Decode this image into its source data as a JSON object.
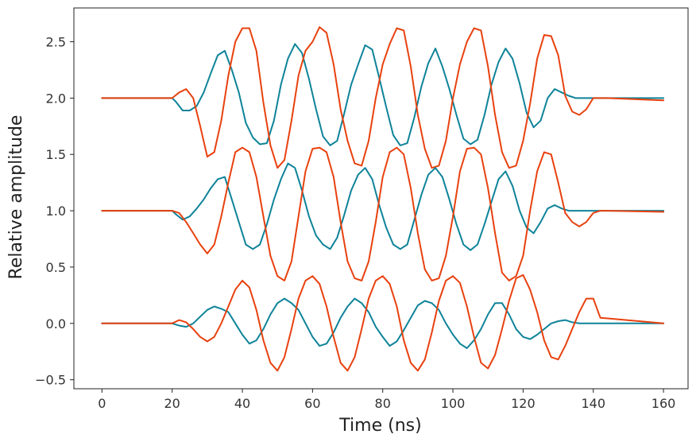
{
  "chart_data": {
    "type": "line",
    "title": "",
    "xlabel": "Time (ns)",
    "ylabel": "Relative amplitude",
    "xlim": [
      -8,
      167
    ],
    "ylim": [
      -0.58,
      2.8
    ],
    "xticks": [
      0,
      20,
      40,
      60,
      80,
      100,
      120,
      140,
      160
    ],
    "xtick_labels": [
      "0",
      "20",
      "40",
      "60",
      "80",
      "100",
      "120",
      "140",
      "160"
    ],
    "yticks": [
      -0.5,
      0.0,
      0.5,
      1.0,
      1.5,
      2.0,
      2.5
    ],
    "ytick_labels": [
      "−0.5",
      "0.0",
      "0.5",
      "1.0",
      "1.5",
      "2.0",
      "2.5"
    ],
    "grid": false,
    "legend": "none",
    "series": [
      {
        "name": "teal offset 2.0",
        "color": "#0e8399",
        "x": [
          0,
          20,
          21,
          23,
          25,
          27,
          29,
          31,
          33,
          35,
          37,
          39,
          41,
          43,
          45,
          47,
          49,
          51,
          53,
          55,
          57,
          59,
          61,
          63,
          65,
          67,
          69,
          71,
          73,
          75,
          77,
          79,
          81,
          83,
          85,
          87,
          89,
          91,
          93,
          95,
          97,
          99,
          101,
          103,
          105,
          107,
          109,
          111,
          113,
          115,
          117,
          119,
          121,
          123,
          125,
          127,
          129,
          131,
          133,
          135,
          137,
          139,
          141,
          143,
          145,
          160
        ],
        "y": [
          2.0,
          2.0,
          1.97,
          1.89,
          1.89,
          1.93,
          2.05,
          2.22,
          2.38,
          2.42,
          2.25,
          2.05,
          1.78,
          1.65,
          1.59,
          1.6,
          1.8,
          2.12,
          2.35,
          2.48,
          2.4,
          2.17,
          1.9,
          1.66,
          1.58,
          1.62,
          1.86,
          2.12,
          2.3,
          2.47,
          2.43,
          2.18,
          1.92,
          1.67,
          1.58,
          1.6,
          1.83,
          2.1,
          2.31,
          2.44,
          2.28,
          2.08,
          1.85,
          1.64,
          1.59,
          1.63,
          1.85,
          2.12,
          2.32,
          2.44,
          2.35,
          2.13,
          1.87,
          1.74,
          1.8,
          2.0,
          2.08,
          2.05,
          2.02,
          2.0,
          2.0,
          2.0,
          2.0,
          2.0,
          2.0,
          2.0
        ]
      },
      {
        "name": "orange offset 2.0",
        "color": "#e8410f",
        "x": [
          0,
          20,
          22,
          24,
          26,
          28,
          30,
          32,
          34,
          36,
          38,
          40,
          42,
          44,
          46,
          48,
          50,
          52,
          54,
          56,
          58,
          60,
          62,
          64,
          66,
          68,
          70,
          72,
          74,
          76,
          78,
          80,
          82,
          84,
          86,
          88,
          90,
          92,
          94,
          96,
          98,
          100,
          102,
          104,
          106,
          108,
          110,
          112,
          114,
          116,
          118,
          120,
          122,
          124,
          126,
          128,
          130,
          132,
          134,
          136,
          138,
          140,
          142,
          144,
          160
        ],
        "y": [
          2.0,
          2.0,
          2.05,
          2.08,
          2.0,
          1.75,
          1.48,
          1.52,
          1.8,
          2.2,
          2.5,
          2.62,
          2.62,
          2.42,
          1.96,
          1.58,
          1.38,
          1.45,
          1.8,
          2.2,
          2.42,
          2.5,
          2.63,
          2.58,
          2.3,
          1.9,
          1.62,
          1.42,
          1.4,
          1.62,
          2.0,
          2.3,
          2.48,
          2.62,
          2.6,
          2.28,
          1.85,
          1.55,
          1.38,
          1.4,
          1.62,
          2.0,
          2.3,
          2.5,
          2.62,
          2.6,
          2.28,
          1.85,
          1.52,
          1.38,
          1.4,
          1.62,
          1.95,
          2.35,
          2.56,
          2.55,
          2.38,
          2.02,
          1.88,
          1.85,
          1.9,
          2.0,
          2.0,
          2.0,
          1.98
        ]
      },
      {
        "name": "teal offset 1.0",
        "color": "#0e8399",
        "x": [
          0,
          20,
          21,
          23,
          25,
          27,
          29,
          31,
          33,
          35,
          37,
          39,
          41,
          43,
          45,
          47,
          49,
          51,
          53,
          55,
          57,
          59,
          61,
          63,
          65,
          67,
          69,
          71,
          73,
          75,
          77,
          79,
          81,
          83,
          85,
          87,
          89,
          91,
          93,
          95,
          97,
          99,
          101,
          103,
          105,
          107,
          109,
          111,
          113,
          115,
          117,
          119,
          121,
          123,
          125,
          127,
          129,
          131,
          133,
          135,
          137,
          139,
          141,
          143,
          145,
          160
        ],
        "y": [
          1.0,
          1.0,
          0.97,
          0.92,
          0.95,
          1.02,
          1.1,
          1.2,
          1.28,
          1.3,
          1.1,
          0.9,
          0.7,
          0.66,
          0.7,
          0.88,
          1.1,
          1.28,
          1.42,
          1.38,
          1.18,
          0.95,
          0.78,
          0.7,
          0.66,
          0.76,
          0.96,
          1.18,
          1.32,
          1.38,
          1.28,
          1.05,
          0.85,
          0.7,
          0.66,
          0.7,
          0.92,
          1.14,
          1.32,
          1.38,
          1.3,
          1.1,
          0.88,
          0.7,
          0.65,
          0.7,
          0.88,
          1.08,
          1.28,
          1.35,
          1.22,
          1.0,
          0.85,
          0.8,
          0.9,
          1.02,
          1.05,
          1.02,
          1.0,
          1.0,
          1.0,
          1.0,
          1.0,
          1.0,
          1.0,
          1.0
        ]
      },
      {
        "name": "orange offset 1.0",
        "color": "#e8410f",
        "x": [
          0,
          20,
          22,
          24,
          26,
          28,
          30,
          32,
          34,
          36,
          38,
          40,
          42,
          44,
          46,
          48,
          50,
          52,
          54,
          56,
          58,
          60,
          62,
          64,
          66,
          68,
          70,
          72,
          74,
          76,
          78,
          80,
          82,
          84,
          86,
          88,
          90,
          92,
          94,
          96,
          98,
          100,
          102,
          104,
          106,
          108,
          110,
          112,
          114,
          116,
          118,
          120,
          122,
          124,
          126,
          128,
          130,
          132,
          134,
          136,
          138,
          140,
          142,
          144,
          160
        ],
        "y": [
          1.0,
          1.0,
          0.98,
          0.9,
          0.8,
          0.7,
          0.62,
          0.7,
          0.95,
          1.25,
          1.52,
          1.56,
          1.52,
          1.3,
          0.95,
          0.6,
          0.42,
          0.38,
          0.55,
          0.95,
          1.35,
          1.55,
          1.56,
          1.52,
          1.3,
          0.9,
          0.55,
          0.4,
          0.38,
          0.55,
          0.9,
          1.3,
          1.52,
          1.56,
          1.5,
          1.2,
          0.8,
          0.48,
          0.38,
          0.4,
          0.6,
          0.95,
          1.35,
          1.55,
          1.56,
          1.5,
          1.2,
          0.8,
          0.45,
          0.38,
          0.42,
          0.6,
          1.0,
          1.35,
          1.52,
          1.5,
          1.25,
          0.98,
          0.9,
          0.86,
          0.9,
          0.98,
          1.0,
          1.0,
          0.99
        ]
      },
      {
        "name": "teal offset 0.0",
        "color": "#0e8399",
        "x": [
          0,
          20,
          22,
          24,
          26,
          28,
          30,
          32,
          34,
          36,
          38,
          40,
          42,
          44,
          46,
          48,
          50,
          52,
          54,
          56,
          58,
          60,
          62,
          64,
          66,
          68,
          70,
          72,
          74,
          76,
          78,
          80,
          82,
          84,
          86,
          88,
          90,
          92,
          94,
          96,
          98,
          100,
          102,
          104,
          106,
          108,
          110,
          112,
          114,
          116,
          118,
          120,
          122,
          124,
          126,
          128,
          130,
          132,
          134,
          136,
          138,
          140,
          142,
          160
        ],
        "y": [
          0.0,
          0.0,
          -0.02,
          -0.03,
          0.0,
          0.06,
          0.12,
          0.15,
          0.13,
          0.1,
          0.0,
          -0.1,
          -0.18,
          -0.15,
          -0.05,
          0.08,
          0.18,
          0.22,
          0.18,
          0.12,
          0.0,
          -0.12,
          -0.2,
          -0.18,
          -0.08,
          0.05,
          0.15,
          0.22,
          0.18,
          0.1,
          -0.03,
          -0.12,
          -0.2,
          -0.16,
          -0.06,
          0.05,
          0.16,
          0.2,
          0.18,
          0.12,
          0.0,
          -0.1,
          -0.18,
          -0.22,
          -0.15,
          -0.05,
          0.08,
          0.18,
          0.18,
          0.08,
          -0.05,
          -0.12,
          -0.14,
          -0.1,
          -0.05,
          0.0,
          0.02,
          0.03,
          0.01,
          0.0,
          0.0,
          0.0,
          0.0,
          0.0
        ]
      },
      {
        "name": "orange offset 0.0",
        "color": "#e8410f",
        "x": [
          0,
          20,
          22,
          24,
          26,
          28,
          30,
          32,
          34,
          36,
          38,
          40,
          42,
          44,
          46,
          48,
          50,
          52,
          54,
          56,
          58,
          60,
          62,
          64,
          66,
          68,
          70,
          72,
          74,
          76,
          78,
          80,
          82,
          84,
          86,
          88,
          90,
          92,
          94,
          96,
          98,
          100,
          102,
          104,
          106,
          108,
          110,
          112,
          114,
          116,
          118,
          120,
          122,
          124,
          126,
          128,
          130,
          132,
          134,
          136,
          138,
          140,
          142,
          160
        ],
        "y": [
          0.0,
          0.0,
          0.03,
          0.01,
          -0.05,
          -0.12,
          -0.16,
          -0.12,
          0.0,
          0.15,
          0.3,
          0.38,
          0.32,
          0.12,
          -0.15,
          -0.35,
          -0.42,
          -0.3,
          -0.05,
          0.22,
          0.38,
          0.42,
          0.35,
          0.15,
          -0.12,
          -0.35,
          -0.42,
          -0.3,
          -0.05,
          0.22,
          0.38,
          0.42,
          0.35,
          0.15,
          -0.15,
          -0.35,
          -0.42,
          -0.32,
          -0.08,
          0.2,
          0.38,
          0.42,
          0.36,
          0.15,
          -0.12,
          -0.35,
          -0.4,
          -0.28,
          -0.05,
          0.2,
          0.4,
          0.43,
          0.3,
          0.1,
          -0.15,
          -0.3,
          -0.32,
          -0.2,
          -0.05,
          0.1,
          0.22,
          0.22,
          0.05,
          0.0
        ]
      }
    ]
  }
}
